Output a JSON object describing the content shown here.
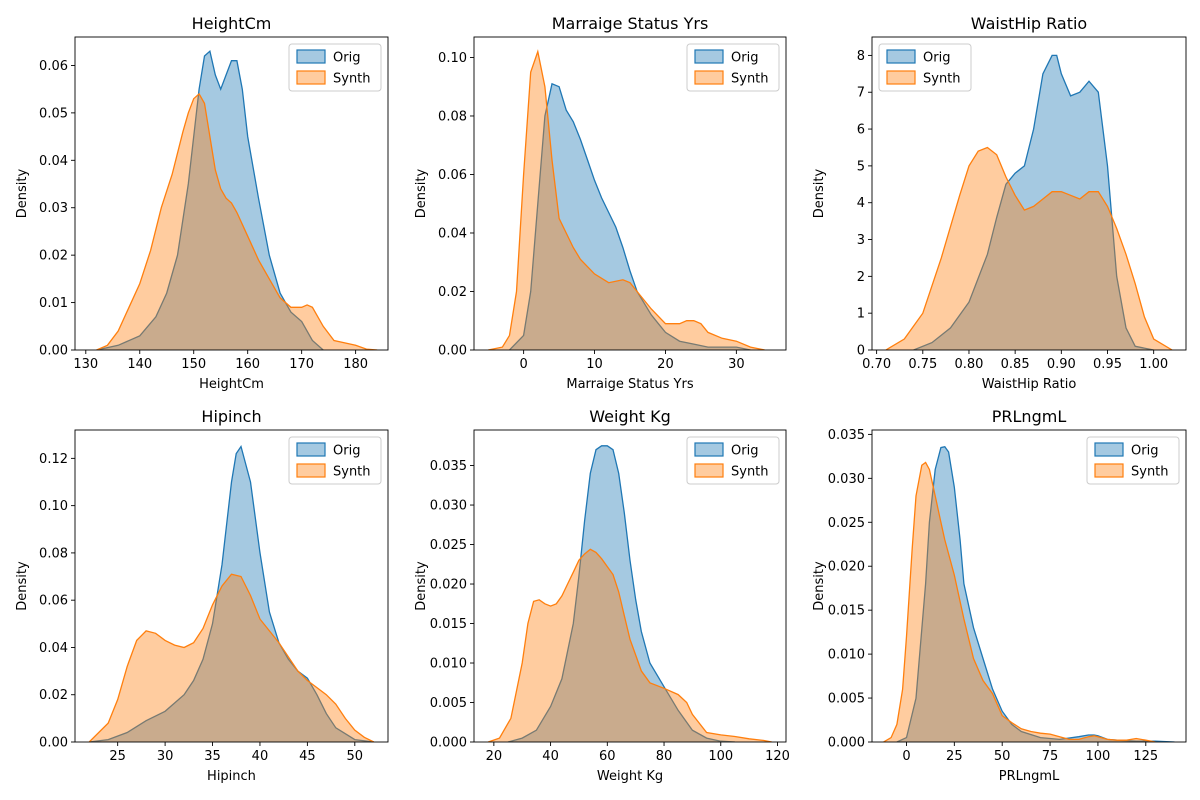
{
  "colors": {
    "orig": "#1f77b4",
    "synth": "#ff7f0e"
  },
  "legend": [
    "Orig",
    "Synth"
  ],
  "chart_data": [
    {
      "type": "area",
      "title": "HeightCm",
      "xlabel": "HeightCm",
      "ylabel": "Density",
      "xlim": [
        128,
        186
      ],
      "ylim": [
        0,
        0.066
      ],
      "xticks": [
        130,
        140,
        150,
        160,
        170,
        180
      ],
      "xtick_labels": [
        "130",
        "140",
        "150",
        "160",
        "170",
        "180"
      ],
      "yticks": [
        0,
        0.01,
        0.02,
        0.03,
        0.04,
        0.05,
        0.06
      ],
      "ytick_labels": [
        "0.00",
        "0.01",
        "0.02",
        "0.03",
        "0.04",
        "0.05",
        "0.06"
      ],
      "legend_position": "top-right",
      "series": [
        {
          "name": "Orig",
          "x": [
            132,
            136,
            140,
            143,
            145,
            147,
            149,
            150,
            151,
            152,
            153,
            154,
            155,
            156,
            157,
            158,
            159,
            160,
            162,
            164,
            166,
            168,
            170,
            172,
            174
          ],
          "values": [
            0,
            0.001,
            0.003,
            0.007,
            0.012,
            0.02,
            0.035,
            0.045,
            0.055,
            0.062,
            0.063,
            0.058,
            0.055,
            0.058,
            0.061,
            0.061,
            0.055,
            0.045,
            0.032,
            0.02,
            0.012,
            0.008,
            0.006,
            0.002,
            0
          ]
        },
        {
          "name": "Synth",
          "x": [
            132,
            134,
            136,
            138,
            140,
            142,
            144,
            146,
            148,
            149,
            150,
            151,
            152,
            153,
            154,
            155,
            156,
            157,
            158,
            160,
            162,
            164,
            166,
            168,
            170,
            171,
            172,
            174,
            176,
            178,
            180,
            182,
            184
          ],
          "values": [
            0,
            0.001,
            0.004,
            0.009,
            0.014,
            0.021,
            0.03,
            0.037,
            0.046,
            0.05,
            0.053,
            0.054,
            0.052,
            0.045,
            0.038,
            0.034,
            0.032,
            0.031,
            0.029,
            0.024,
            0.019,
            0.015,
            0.011,
            0.009,
            0.009,
            0.0095,
            0.009,
            0.005,
            0.002,
            0.0015,
            0.001,
            0.0002,
            0
          ]
        }
      ]
    },
    {
      "type": "area",
      "title": "Marraige Status Yrs",
      "xlabel": "Marraige Status Yrs",
      "ylabel": "Density",
      "xlim": [
        -7,
        37
      ],
      "ylim": [
        0,
        0.107
      ],
      "xticks": [
        0,
        10,
        20,
        30
      ],
      "xtick_labels": [
        "0",
        "10",
        "20",
        "30"
      ],
      "yticks": [
        0,
        0.02,
        0.04,
        0.06,
        0.08,
        0.1
      ],
      "ytick_labels": [
        "0.00",
        "0.02",
        "0.04",
        "0.06",
        "0.08",
        "0.10"
      ],
      "legend_position": "top-right",
      "series": [
        {
          "name": "Orig",
          "x": [
            -2,
            0,
            1,
            2,
            3,
            4,
            5,
            6,
            7,
            8,
            9,
            10,
            11,
            12,
            13,
            14,
            15,
            16,
            17,
            18,
            19,
            20,
            22,
            24,
            26,
            28,
            30,
            32
          ],
          "values": [
            0,
            0.005,
            0.02,
            0.05,
            0.08,
            0.091,
            0.09,
            0.082,
            0.078,
            0.072,
            0.065,
            0.058,
            0.052,
            0.047,
            0.042,
            0.035,
            0.027,
            0.02,
            0.016,
            0.012,
            0.009,
            0.006,
            0.003,
            0.002,
            0.001,
            0.001,
            0.001,
            0
          ]
        },
        {
          "name": "Synth",
          "x": [
            -5,
            -3,
            -2,
            -1,
            0,
            1,
            2,
            3,
            4,
            5,
            6,
            7,
            8,
            10,
            12,
            14,
            15,
            16,
            18,
            20,
            22,
            23,
            24,
            25,
            26,
            28,
            30,
            32,
            34
          ],
          "values": [
            0,
            0.001,
            0.005,
            0.02,
            0.06,
            0.095,
            0.102,
            0.09,
            0.065,
            0.045,
            0.04,
            0.035,
            0.031,
            0.026,
            0.023,
            0.024,
            0.023,
            0.02,
            0.014,
            0.009,
            0.009,
            0.01,
            0.01,
            0.009,
            0.006,
            0.004,
            0.003,
            0.001,
            0
          ]
        }
      ]
    },
    {
      "type": "area",
      "title": "WaistHip Ratio",
      "xlabel": "WaistHip Ratio",
      "ylabel": "Density",
      "xlim": [
        0.695,
        1.035
      ],
      "ylim": [
        0,
        8.5
      ],
      "xticks": [
        0.7,
        0.75,
        0.8,
        0.85,
        0.9,
        0.95,
        1.0
      ],
      "xtick_labels": [
        "0.70",
        "0.75",
        "0.80",
        "0.85",
        "0.90",
        "0.95",
        "1.00"
      ],
      "yticks": [
        0,
        1,
        2,
        3,
        4,
        5,
        6,
        7,
        8
      ],
      "ytick_labels": [
        "0",
        "1",
        "2",
        "3",
        "4",
        "5",
        "6",
        "7",
        "8"
      ],
      "legend_position": "top-left",
      "series": [
        {
          "name": "Orig",
          "x": [
            0.74,
            0.76,
            0.78,
            0.8,
            0.82,
            0.83,
            0.84,
            0.85,
            0.86,
            0.87,
            0.88,
            0.89,
            0.895,
            0.9,
            0.91,
            0.92,
            0.93,
            0.94,
            0.95,
            0.96,
            0.97,
            0.98,
            1.0
          ],
          "values": [
            0,
            0.2,
            0.6,
            1.3,
            2.6,
            3.6,
            4.5,
            4.8,
            5.0,
            6.0,
            7.5,
            8.0,
            8.0,
            7.5,
            6.9,
            7.0,
            7.3,
            7.0,
            5.0,
            2.0,
            0.6,
            0.1,
            0
          ]
        },
        {
          "name": "Synth",
          "x": [
            0.71,
            0.73,
            0.75,
            0.77,
            0.79,
            0.8,
            0.81,
            0.82,
            0.83,
            0.84,
            0.85,
            0.86,
            0.87,
            0.88,
            0.89,
            0.9,
            0.91,
            0.92,
            0.93,
            0.94,
            0.95,
            0.96,
            0.97,
            0.98,
            0.99,
            1.0,
            1.02
          ],
          "values": [
            0,
            0.3,
            1.0,
            2.5,
            4.2,
            5.0,
            5.4,
            5.5,
            5.3,
            4.7,
            4.2,
            3.8,
            3.9,
            4.1,
            4.3,
            4.3,
            4.2,
            4.1,
            4.3,
            4.3,
            3.9,
            3.3,
            2.6,
            1.8,
            0.9,
            0.3,
            0
          ]
        }
      ]
    },
    {
      "type": "area",
      "title": "Hipinch",
      "xlabel": "Hipinch",
      "ylabel": "Density",
      "xlim": [
        20.5,
        53.5
      ],
      "ylim": [
        0,
        0.132
      ],
      "xticks": [
        25,
        30,
        35,
        40,
        45,
        50
      ],
      "xtick_labels": [
        "25",
        "30",
        "35",
        "40",
        "45",
        "50"
      ],
      "yticks": [
        0,
        0.02,
        0.04,
        0.06,
        0.08,
        0.1,
        0.12
      ],
      "ytick_labels": [
        "0.00",
        "0.02",
        "0.04",
        "0.06",
        "0.08",
        "0.10",
        "0.12"
      ],
      "legend_position": "top-right",
      "series": [
        {
          "name": "Orig",
          "x": [
            22,
            24,
            26,
            28,
            30,
            32,
            33,
            34,
            35,
            36,
            37,
            37.5,
            38,
            39,
            40,
            41,
            42,
            43,
            44,
            45,
            46,
            47,
            48,
            50,
            52
          ],
          "values": [
            0,
            0.001,
            0.004,
            0.009,
            0.013,
            0.02,
            0.026,
            0.035,
            0.05,
            0.075,
            0.11,
            0.122,
            0.125,
            0.11,
            0.08,
            0.055,
            0.042,
            0.035,
            0.03,
            0.027,
            0.02,
            0.012,
            0.006,
            0.001,
            0
          ]
        },
        {
          "name": "Synth",
          "x": [
            22,
            24,
            25,
            26,
            27,
            28,
            29,
            30,
            31,
            32,
            33,
            34,
            35,
            36,
            37,
            38,
            39,
            40,
            42,
            44,
            45,
            46,
            47,
            48,
            49,
            50,
            51,
            52
          ],
          "values": [
            0,
            0.008,
            0.018,
            0.032,
            0.043,
            0.047,
            0.046,
            0.043,
            0.041,
            0.04,
            0.042,
            0.048,
            0.058,
            0.066,
            0.071,
            0.07,
            0.062,
            0.052,
            0.042,
            0.03,
            0.026,
            0.023,
            0.02,
            0.016,
            0.01,
            0.005,
            0.002,
            0
          ]
        }
      ]
    },
    {
      "type": "area",
      "title": "Weight Kg",
      "xlabel": "Weight Kg",
      "ylabel": "Density",
      "xlim": [
        13,
        123
      ],
      "ylim": [
        0,
        0.0395
      ],
      "xticks": [
        20,
        40,
        60,
        80,
        100,
        120
      ],
      "xtick_labels": [
        "20",
        "40",
        "60",
        "80",
        "100",
        "120"
      ],
      "yticks": [
        0,
        0.005,
        0.01,
        0.015,
        0.02,
        0.025,
        0.03,
        0.035
      ],
      "ytick_labels": [
        "0.000",
        "0.005",
        "0.010",
        "0.015",
        "0.020",
        "0.025",
        "0.030",
        "0.035"
      ],
      "legend_position": "top-right",
      "series": [
        {
          "name": "Orig",
          "x": [
            25,
            30,
            35,
            40,
            44,
            48,
            50,
            52,
            54,
            56,
            58,
            60,
            62,
            64,
            66,
            68,
            70,
            72,
            75,
            80,
            85,
            90,
            95,
            100,
            105
          ],
          "values": [
            0,
            0.0005,
            0.0015,
            0.0045,
            0.008,
            0.015,
            0.021,
            0.028,
            0.034,
            0.037,
            0.0375,
            0.0375,
            0.037,
            0.034,
            0.029,
            0.023,
            0.018,
            0.014,
            0.01,
            0.007,
            0.004,
            0.0015,
            0.0005,
            0.0001,
            0
          ]
        },
        {
          "name": "Synth",
          "x": [
            18,
            22,
            26,
            30,
            32,
            34,
            36,
            38,
            40,
            42,
            44,
            46,
            48,
            50,
            52,
            54,
            56,
            58,
            60,
            62,
            64,
            66,
            68,
            70,
            72,
            75,
            80,
            85,
            88,
            90,
            95,
            100,
            105,
            110,
            115,
            118
          ],
          "values": [
            0,
            0.0005,
            0.003,
            0.01,
            0.015,
            0.0178,
            0.018,
            0.0175,
            0.0172,
            0.0175,
            0.0185,
            0.02,
            0.0215,
            0.023,
            0.0238,
            0.0244,
            0.024,
            0.0232,
            0.0222,
            0.0212,
            0.019,
            0.016,
            0.013,
            0.011,
            0.009,
            0.0075,
            0.0068,
            0.006,
            0.005,
            0.0035,
            0.0012,
            0.0009,
            0.0007,
            0.0004,
            0.0002,
            0
          ]
        }
      ]
    },
    {
      "type": "area",
      "title": "PRLngmL",
      "xlabel": "PRLngmL",
      "ylabel": "Density",
      "xlim": [
        -18,
        146
      ],
      "ylim": [
        0,
        0.0355
      ],
      "xticks": [
        0,
        25,
        50,
        75,
        100,
        125
      ],
      "xtick_labels": [
        "0",
        "25",
        "50",
        "75",
        "100",
        "125"
      ],
      "yticks": [
        0,
        0.005,
        0.01,
        0.015,
        0.02,
        0.025,
        0.03,
        0.035
      ],
      "ytick_labels": [
        "0.000",
        "0.005",
        "0.010",
        "0.015",
        "0.020",
        "0.025",
        "0.030",
        "0.035"
      ],
      "legend_position": "top-right",
      "series": [
        {
          "name": "Orig",
          "x": [
            -5,
            0,
            5,
            10,
            12,
            15,
            18,
            20,
            22,
            25,
            28,
            30,
            35,
            40,
            45,
            50,
            55,
            60,
            70,
            80,
            90,
            95,
            98,
            100,
            105,
            110,
            120,
            130,
            140
          ],
          "values": [
            0,
            0.0005,
            0.005,
            0.018,
            0.025,
            0.031,
            0.0335,
            0.0336,
            0.033,
            0.029,
            0.023,
            0.018,
            0.013,
            0.0095,
            0.006,
            0.0035,
            0.002,
            0.0012,
            0.0005,
            0.0003,
            0.0006,
            0.0008,
            0.0008,
            0.0007,
            0.0003,
            0.0002,
            0.0001,
            0.0001,
            0
          ]
        },
        {
          "name": "Synth",
          "x": [
            -12,
            -8,
            -5,
            -2,
            0,
            3,
            5,
            8,
            10,
            12,
            15,
            18,
            20,
            25,
            30,
            35,
            40,
            45,
            50,
            55,
            60,
            65,
            70,
            75,
            80,
            85,
            90,
            95,
            98,
            100,
            105,
            110,
            115,
            120,
            125,
            130
          ],
          "values": [
            0,
            0.0005,
            0.002,
            0.006,
            0.012,
            0.022,
            0.028,
            0.0315,
            0.0318,
            0.031,
            0.028,
            0.025,
            0.023,
            0.019,
            0.014,
            0.0095,
            0.007,
            0.0055,
            0.003,
            0.0022,
            0.0015,
            0.0012,
            0.001,
            0.0009,
            0.0006,
            0.0003,
            0.0003,
            0.0006,
            0.0007,
            0.0006,
            0.0003,
            0.0002,
            0.0002,
            0.0004,
            0.0002,
            0
          ]
        }
      ]
    }
  ]
}
